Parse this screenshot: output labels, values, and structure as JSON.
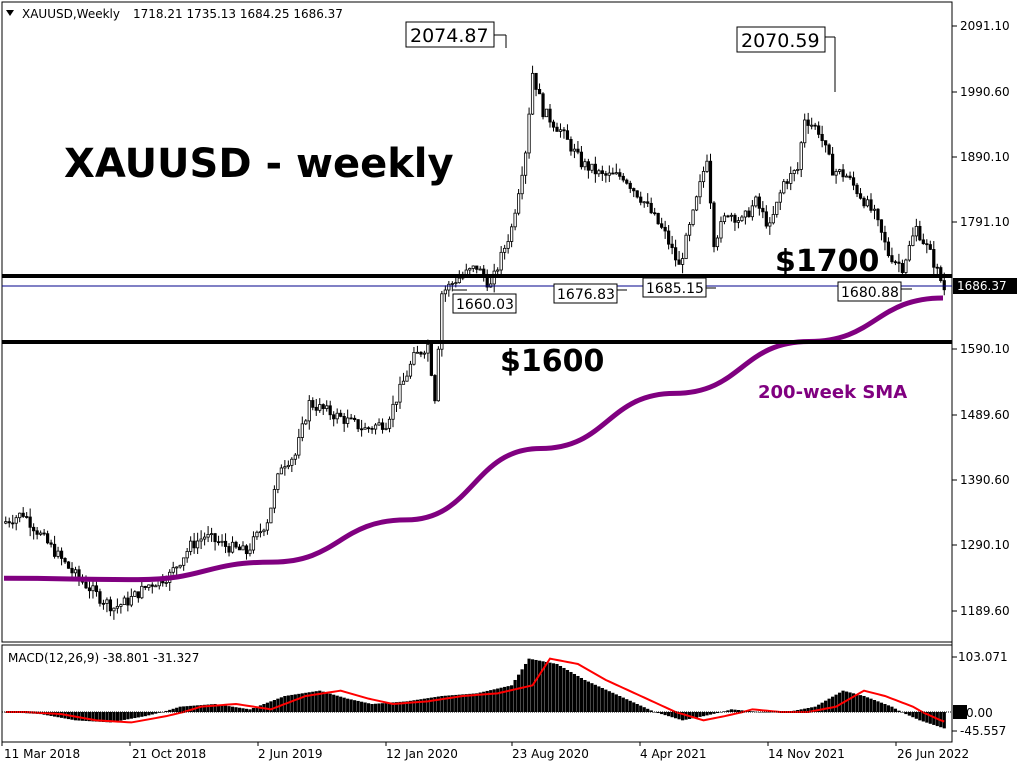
{
  "header": {
    "symbol": "XAUUSD,Weekly",
    "ohlc": "1718.21 1735.13 1684.25 1686.37",
    "macd": "MACD(12,26,9) -38.801 -31.327"
  },
  "title": "XAUUSD - weekly",
  "annotations": {
    "level_1700": "$1700",
    "level_1600": "$1600",
    "sma_label": "200-week SMA",
    "peak_1": "2074.87",
    "peak_2": "2070.59",
    "low_1": "1660.03",
    "low_2": "1676.83",
    "low_3": "1685.15",
    "low_4": "1680.88",
    "current_price": "1686.37"
  },
  "colors": {
    "candle": "#000000",
    "sma": "#800080",
    "macd_signal": "#ff0000",
    "level_line": "#000000",
    "price_line": "#00008b"
  },
  "chart_data": {
    "type": "line",
    "series": [
      {
        "name": "XAUUSD",
        "x": [
          "11 Mar 2018",
          "21 Oct 2018",
          "2 Jun 2019",
          "12 Jan 2020",
          "23 Aug 2020",
          "4 Apr 2021",
          "14 Nov 2021",
          "26 Jun 2022"
        ],
        "values": [
          1330,
          1232,
          1410,
          1555,
          1930,
          1730,
          1880,
          1686.37
        ]
      },
      {
        "name": "200-week SMA",
        "x": [
          "11 Mar 2018",
          "21 Oct 2018",
          "2 Jun 2019",
          "12 Jan 2020",
          "23 Aug 2020",
          "4 Apr 2021",
          "14 Nov 2021",
          "26 Jun 2022"
        ],
        "values": [
          1240,
          1238,
          1265,
          1330,
          1440,
          1525,
          1605,
          1672
        ]
      }
    ],
    "ylim": [
      1140,
      2120
    ],
    "yticks": [
      "2091.10",
      "1990.60",
      "1890.10",
      "1791.10",
      "1686.37",
      "1590.10",
      "1489.60",
      "1390.60",
      "1290.10",
      "1189.60"
    ],
    "xticks": [
      "11 Mar 2018",
      "21 Oct 2018",
      "2 Jun 2019",
      "12 Jan 2020",
      "23 Aug 2020",
      "4 Apr 2021",
      "14 Nov 2021",
      "26 Jun 2022"
    ],
    "levels": [
      1700,
      1600
    ],
    "macd": {
      "label": "MACD(12,26,9) -38.801 -31.327",
      "yticks": [
        "103.071",
        "0.00",
        "-45.557"
      ],
      "ylim": [
        -45.557,
        103.071
      ]
    },
    "grid": false
  }
}
